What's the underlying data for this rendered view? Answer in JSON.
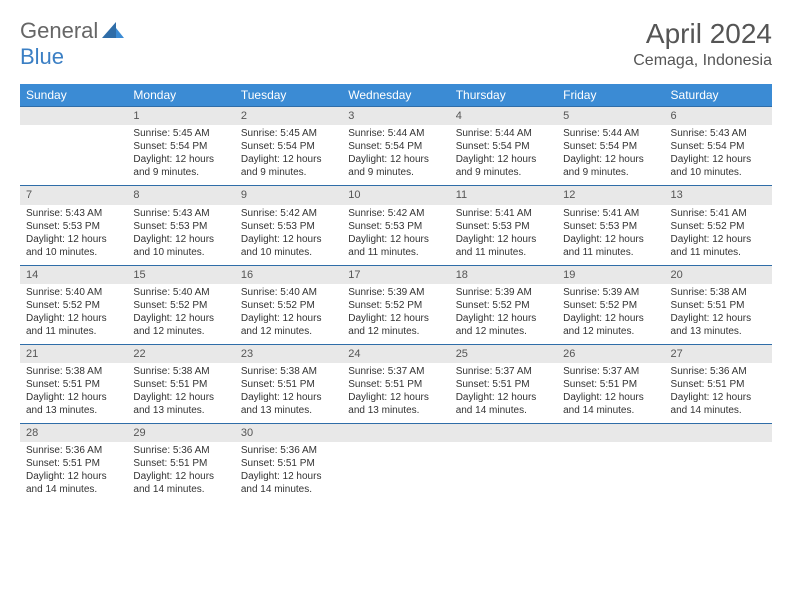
{
  "logo": {
    "text1": "General",
    "text2": "Blue"
  },
  "header": {
    "title": "April 2024",
    "location": "Cemaga, Indonesia"
  },
  "colors": {
    "header_bg": "#3b8bd4",
    "header_text": "#ffffff",
    "daynum_bg": "#e8e8e8",
    "row_border": "#2f6da8",
    "text": "#333333",
    "logo_gray": "#666666",
    "logo_blue": "#3b7fc4"
  },
  "weekdays": [
    "Sunday",
    "Monday",
    "Tuesday",
    "Wednesday",
    "Thursday",
    "Friday",
    "Saturday"
  ],
  "weeks": [
    [
      {
        "day": "",
        "lines": [
          "",
          "",
          "",
          ""
        ]
      },
      {
        "day": "1",
        "lines": [
          "Sunrise: 5:45 AM",
          "Sunset: 5:54 PM",
          "Daylight: 12 hours",
          "and 9 minutes."
        ]
      },
      {
        "day": "2",
        "lines": [
          "Sunrise: 5:45 AM",
          "Sunset: 5:54 PM",
          "Daylight: 12 hours",
          "and 9 minutes."
        ]
      },
      {
        "day": "3",
        "lines": [
          "Sunrise: 5:44 AM",
          "Sunset: 5:54 PM",
          "Daylight: 12 hours",
          "and 9 minutes."
        ]
      },
      {
        "day": "4",
        "lines": [
          "Sunrise: 5:44 AM",
          "Sunset: 5:54 PM",
          "Daylight: 12 hours",
          "and 9 minutes."
        ]
      },
      {
        "day": "5",
        "lines": [
          "Sunrise: 5:44 AM",
          "Sunset: 5:54 PM",
          "Daylight: 12 hours",
          "and 9 minutes."
        ]
      },
      {
        "day": "6",
        "lines": [
          "Sunrise: 5:43 AM",
          "Sunset: 5:54 PM",
          "Daylight: 12 hours",
          "and 10 minutes."
        ]
      }
    ],
    [
      {
        "day": "7",
        "lines": [
          "Sunrise: 5:43 AM",
          "Sunset: 5:53 PM",
          "Daylight: 12 hours",
          "and 10 minutes."
        ]
      },
      {
        "day": "8",
        "lines": [
          "Sunrise: 5:43 AM",
          "Sunset: 5:53 PM",
          "Daylight: 12 hours",
          "and 10 minutes."
        ]
      },
      {
        "day": "9",
        "lines": [
          "Sunrise: 5:42 AM",
          "Sunset: 5:53 PM",
          "Daylight: 12 hours",
          "and 10 minutes."
        ]
      },
      {
        "day": "10",
        "lines": [
          "Sunrise: 5:42 AM",
          "Sunset: 5:53 PM",
          "Daylight: 12 hours",
          "and 11 minutes."
        ]
      },
      {
        "day": "11",
        "lines": [
          "Sunrise: 5:41 AM",
          "Sunset: 5:53 PM",
          "Daylight: 12 hours",
          "and 11 minutes."
        ]
      },
      {
        "day": "12",
        "lines": [
          "Sunrise: 5:41 AM",
          "Sunset: 5:53 PM",
          "Daylight: 12 hours",
          "and 11 minutes."
        ]
      },
      {
        "day": "13",
        "lines": [
          "Sunrise: 5:41 AM",
          "Sunset: 5:52 PM",
          "Daylight: 12 hours",
          "and 11 minutes."
        ]
      }
    ],
    [
      {
        "day": "14",
        "lines": [
          "Sunrise: 5:40 AM",
          "Sunset: 5:52 PM",
          "Daylight: 12 hours",
          "and 11 minutes."
        ]
      },
      {
        "day": "15",
        "lines": [
          "Sunrise: 5:40 AM",
          "Sunset: 5:52 PM",
          "Daylight: 12 hours",
          "and 12 minutes."
        ]
      },
      {
        "day": "16",
        "lines": [
          "Sunrise: 5:40 AM",
          "Sunset: 5:52 PM",
          "Daylight: 12 hours",
          "and 12 minutes."
        ]
      },
      {
        "day": "17",
        "lines": [
          "Sunrise: 5:39 AM",
          "Sunset: 5:52 PM",
          "Daylight: 12 hours",
          "and 12 minutes."
        ]
      },
      {
        "day": "18",
        "lines": [
          "Sunrise: 5:39 AM",
          "Sunset: 5:52 PM",
          "Daylight: 12 hours",
          "and 12 minutes."
        ]
      },
      {
        "day": "19",
        "lines": [
          "Sunrise: 5:39 AM",
          "Sunset: 5:52 PM",
          "Daylight: 12 hours",
          "and 12 minutes."
        ]
      },
      {
        "day": "20",
        "lines": [
          "Sunrise: 5:38 AM",
          "Sunset: 5:51 PM",
          "Daylight: 12 hours",
          "and 13 minutes."
        ]
      }
    ],
    [
      {
        "day": "21",
        "lines": [
          "Sunrise: 5:38 AM",
          "Sunset: 5:51 PM",
          "Daylight: 12 hours",
          "and 13 minutes."
        ]
      },
      {
        "day": "22",
        "lines": [
          "Sunrise: 5:38 AM",
          "Sunset: 5:51 PM",
          "Daylight: 12 hours",
          "and 13 minutes."
        ]
      },
      {
        "day": "23",
        "lines": [
          "Sunrise: 5:38 AM",
          "Sunset: 5:51 PM",
          "Daylight: 12 hours",
          "and 13 minutes."
        ]
      },
      {
        "day": "24",
        "lines": [
          "Sunrise: 5:37 AM",
          "Sunset: 5:51 PM",
          "Daylight: 12 hours",
          "and 13 minutes."
        ]
      },
      {
        "day": "25",
        "lines": [
          "Sunrise: 5:37 AM",
          "Sunset: 5:51 PM",
          "Daylight: 12 hours",
          "and 14 minutes."
        ]
      },
      {
        "day": "26",
        "lines": [
          "Sunrise: 5:37 AM",
          "Sunset: 5:51 PM",
          "Daylight: 12 hours",
          "and 14 minutes."
        ]
      },
      {
        "day": "27",
        "lines": [
          "Sunrise: 5:36 AM",
          "Sunset: 5:51 PM",
          "Daylight: 12 hours",
          "and 14 minutes."
        ]
      }
    ],
    [
      {
        "day": "28",
        "lines": [
          "Sunrise: 5:36 AM",
          "Sunset: 5:51 PM",
          "Daylight: 12 hours",
          "and 14 minutes."
        ]
      },
      {
        "day": "29",
        "lines": [
          "Sunrise: 5:36 AM",
          "Sunset: 5:51 PM",
          "Daylight: 12 hours",
          "and 14 minutes."
        ]
      },
      {
        "day": "30",
        "lines": [
          "Sunrise: 5:36 AM",
          "Sunset: 5:51 PM",
          "Daylight: 12 hours",
          "and 14 minutes."
        ]
      },
      {
        "day": "",
        "lines": [
          "",
          "",
          "",
          ""
        ]
      },
      {
        "day": "",
        "lines": [
          "",
          "",
          "",
          ""
        ]
      },
      {
        "day": "",
        "lines": [
          "",
          "",
          "",
          ""
        ]
      },
      {
        "day": "",
        "lines": [
          "",
          "",
          "",
          ""
        ]
      }
    ]
  ]
}
